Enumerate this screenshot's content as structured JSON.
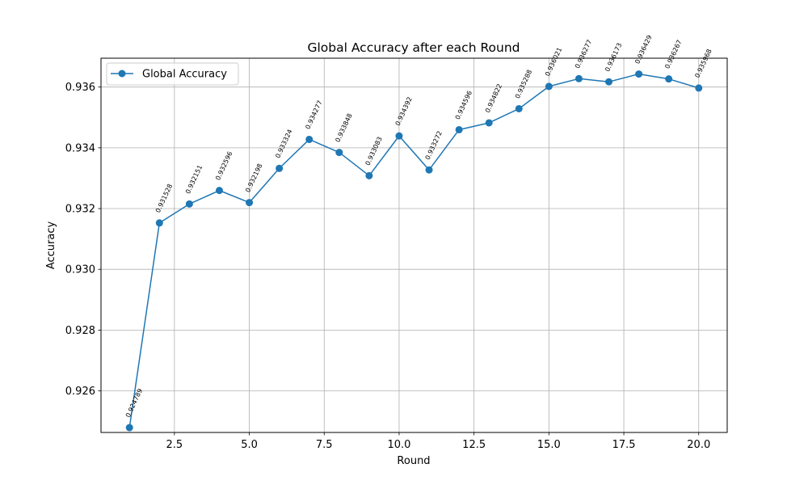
{
  "chart_data": {
    "type": "line",
    "title": "Global Accuracy after each Round",
    "xlabel": "Round",
    "ylabel": "Accuracy",
    "xlim": [
      0.05,
      20.95
    ],
    "ylim": [
      0.92463,
      0.93695
    ],
    "xticks": [
      2.5,
      5.0,
      7.5,
      10.0,
      12.5,
      15.0,
      17.5,
      20.0
    ],
    "xtick_labels": [
      "2.5",
      "5.0",
      "7.5",
      "10.0",
      "12.5",
      "15.0",
      "17.5",
      "20.0"
    ],
    "yticks": [
      0.926,
      0.928,
      0.93,
      0.932,
      0.934,
      0.936
    ],
    "ytick_labels": [
      "0.926",
      "0.928",
      "0.930",
      "0.932",
      "0.934",
      "0.936"
    ],
    "grid": true,
    "legend_position": "upper-left",
    "series": [
      {
        "name": "Global Accuracy",
        "color": "#1f77b4",
        "marker": "circle",
        "x": [
          1,
          2,
          3,
          4,
          5,
          6,
          7,
          8,
          9,
          10,
          11,
          12,
          13,
          14,
          15,
          16,
          17,
          18,
          19,
          20
        ],
        "y": [
          0.924789,
          0.931528,
          0.932151,
          0.932596,
          0.932198,
          0.933324,
          0.934277,
          0.933848,
          0.933083,
          0.934392,
          0.933272,
          0.934596,
          0.934822,
          0.935288,
          0.936021,
          0.936277,
          0.936173,
          0.936429,
          0.936267,
          0.935968
        ],
        "labels": [
          "0.924789",
          "0.931528",
          "0.932151",
          "0.932596",
          "0.932198",
          "0.933324",
          "0.934277",
          "0.933848",
          "0.933083",
          "0.934392",
          "0.933272",
          "0.934596",
          "0.934822",
          "0.935288",
          "0.936021",
          "0.936277",
          "0.936173",
          "0.936429",
          "0.936267",
          "0.935968"
        ]
      }
    ]
  }
}
